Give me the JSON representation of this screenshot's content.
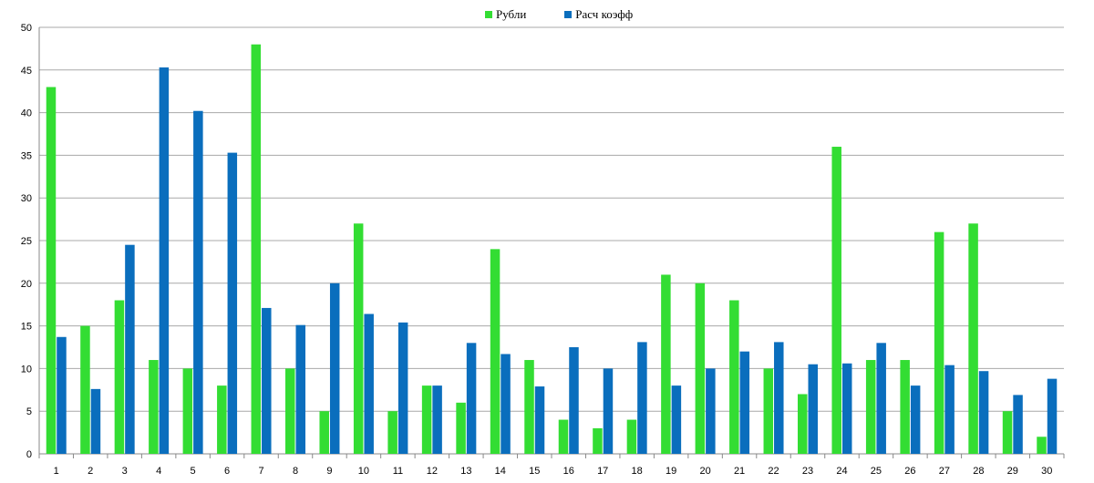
{
  "chart_data": {
    "type": "bar",
    "title": "",
    "xlabel": "",
    "ylabel": "",
    "ylim": [
      0,
      50
    ],
    "yticks": [
      0,
      5,
      10,
      15,
      20,
      25,
      30,
      35,
      40,
      45,
      50
    ],
    "grid": true,
    "legend_position": "top-center",
    "categories": [
      "1",
      "2",
      "3",
      "4",
      "5",
      "6",
      "7",
      "8",
      "9",
      "10",
      "11",
      "12",
      "13",
      "14",
      "15",
      "16",
      "17",
      "18",
      "19",
      "20",
      "21",
      "22",
      "23",
      "24",
      "25",
      "26",
      "27",
      "28",
      "29",
      "30"
    ],
    "series": [
      {
        "name": "Рубли",
        "color": "#33dd33",
        "values": [
          43,
          15,
          18,
          11,
          10,
          8,
          48,
          10,
          5,
          27,
          5,
          8,
          6,
          24,
          11,
          4,
          3,
          4,
          21,
          20,
          18,
          10,
          7,
          36,
          11,
          11,
          26,
          27,
          5,
          2
        ]
      },
      {
        "name": "Расч коэфф",
        "color": "#0a6ebd",
        "values": [
          13.7,
          7.6,
          24.5,
          45.3,
          40.2,
          35.3,
          17.1,
          15.1,
          20,
          16.4,
          15.4,
          8,
          13,
          11.7,
          7.9,
          12.5,
          10,
          13.1,
          8,
          10,
          12,
          13.1,
          10.5,
          10.6,
          13,
          8,
          10.4,
          9.7,
          6.9,
          8.8
        ]
      }
    ]
  }
}
